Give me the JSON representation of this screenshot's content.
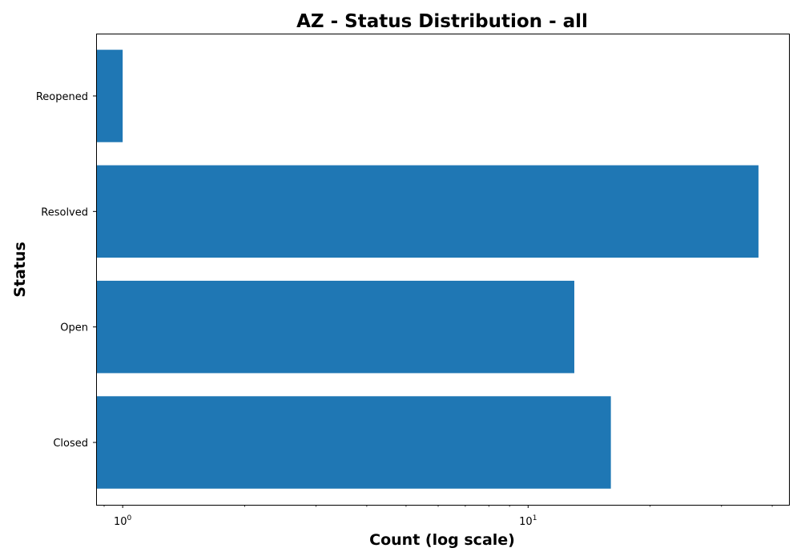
{
  "chart_data": {
    "type": "bar",
    "orientation": "horizontal",
    "title": "AZ - Status Distribution - all",
    "xlabel": "Count (log scale)",
    "ylabel": "Status",
    "x_scale": "log",
    "xlim": [
      0.86,
      44
    ],
    "categories": [
      "Closed",
      "Open",
      "Resolved",
      "Reopened"
    ],
    "values": [
      16,
      13,
      37,
      1
    ],
    "x_major_ticks": [
      {
        "value": 1,
        "base": "10",
        "exp": "0"
      },
      {
        "value": 10,
        "base": "10",
        "exp": "1"
      }
    ],
    "bar_color": "#1f77b4",
    "grid": false,
    "legend": "none"
  }
}
